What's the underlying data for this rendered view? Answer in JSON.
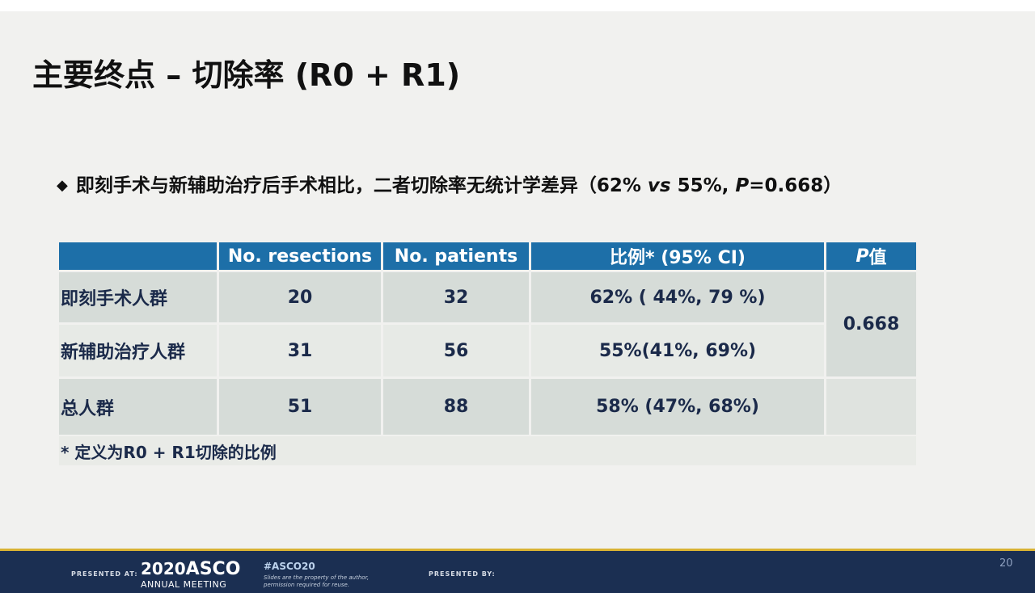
{
  "title": "主要终点 – 切除率 (R0 + R1)",
  "bullet": {
    "marker": "◆",
    "text_main": "即刻手术与新辅助治疗后手术相比，二者切除率无统计学差异（62% ",
    "vs": "vs",
    "text_mid": " 55%, ",
    "p_letter": "P",
    "text_end": "=0.668）"
  },
  "table": {
    "headers": {
      "group": "",
      "resections": "No. resections",
      "patients": "No. patients",
      "ratio": "比例* (95% CI)",
      "p_italic": "P",
      "p_rest": "值"
    },
    "rows": [
      {
        "group": "即刻手术人群",
        "resections": "20",
        "patients": "32",
        "ratio": "62% ( 44%, 79 %)"
      },
      {
        "group": "新辅助治疗人群",
        "resections": "31",
        "patients": "56",
        "ratio": "55%(41%, 69%)"
      },
      {
        "group": "总人群",
        "resections": "51",
        "patients": "88",
        "ratio": "58% (47%, 68%)"
      }
    ],
    "p_value": "0.668",
    "footnote": "* 定义为R0 + R1切除的比例"
  },
  "footer": {
    "presented_at": "PRESENTED AT:",
    "year": "2020",
    "brand": "ASCO",
    "meeting": "ANNUAL MEETING",
    "hashtag": "#ASCO20",
    "disclaimer": "Slides are the property of the author, permission required for reuse.",
    "presented_by": "PRESENTED BY:",
    "page_number": "20"
  },
  "colors": {
    "header_bg": "#1d6fa8",
    "row_dark": "#d6dcd8",
    "row_light": "#e7eae6",
    "footer_bg": "#1b2f52",
    "footer_accent": "#d9b233",
    "text_dark": "#1b2a4a"
  }
}
